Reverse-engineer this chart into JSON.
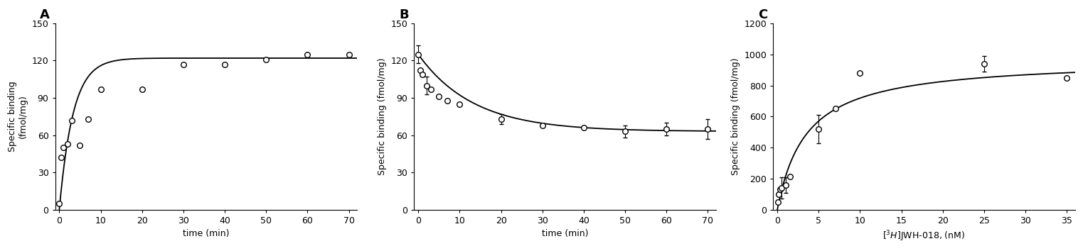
{
  "panel_A": {
    "label": "A",
    "x_data": [
      0,
      0.5,
      1,
      2,
      3,
      5,
      7,
      10,
      20,
      30,
      40,
      50,
      60,
      70
    ],
    "y_data": [
      5,
      42,
      50,
      53,
      72,
      52,
      73,
      97,
      97,
      117,
      117,
      121,
      125,
      125
    ],
    "xlabel": "time (min)",
    "ylabel": "Specific binding\n(fmol/mg)",
    "xlim": [
      -1,
      72
    ],
    "ylim": [
      0,
      150
    ],
    "xticks": [
      0,
      10,
      20,
      30,
      40,
      50,
      60,
      70
    ],
    "yticks": [
      0,
      30,
      60,
      90,
      120,
      150
    ],
    "Bmax": 122,
    "kobs": 0.3
  },
  "panel_B": {
    "label": "B",
    "x_data": [
      0,
      0.5,
      1,
      2,
      3,
      5,
      7,
      10,
      20,
      30,
      40,
      50,
      60,
      70
    ],
    "y_data": [
      125,
      112,
      109,
      100,
      97,
      91,
      88,
      85,
      73,
      68,
      66,
      63,
      65,
      65
    ],
    "y_err": [
      7,
      0,
      0,
      7,
      0,
      0,
      0,
      0,
      4,
      0,
      0,
      5,
      5,
      8
    ],
    "xlabel": "time (min)",
    "ylabel": "Specific binding (fmol/mg)",
    "xlim": [
      -1,
      72
    ],
    "ylim": [
      0,
      150
    ],
    "xticks": [
      0,
      10,
      20,
      30,
      40,
      50,
      60,
      70
    ],
    "yticks": [
      0,
      30,
      60,
      90,
      120,
      150
    ],
    "Bmax": 125,
    "plateau": 63,
    "koff": 0.075
  },
  "panel_C": {
    "label": "C",
    "x_data": [
      0.1,
      0.2,
      0.3,
      0.5,
      1.0,
      1.5,
      5.0,
      7.0,
      10.0,
      25.0,
      35.0
    ],
    "y_data": [
      50,
      100,
      130,
      140,
      160,
      215,
      520,
      650,
      880,
      940,
      850
    ],
    "y_err": [
      0,
      0,
      0,
      70,
      50,
      0,
      90,
      0,
      0,
      50,
      0
    ],
    "xlabel": "$[^{3}H]$JWH-018, (nM)",
    "ylabel": "Specific binding (fmol/mg)",
    "xlim": [
      -0.5,
      36
    ],
    "ylim": [
      0,
      1200
    ],
    "xticks": [
      0,
      5,
      10,
      15,
      20,
      25,
      30,
      35
    ],
    "yticks": [
      0,
      200,
      400,
      600,
      800,
      1000,
      1200
    ],
    "Bmax": 970,
    "Kd": 3.5
  },
  "marker_color": "#000000",
  "marker_face": "white",
  "marker_size": 5.5,
  "line_color": "#000000",
  "line_width": 1.3,
  "font_size": 9,
  "label_font_size": 9,
  "background_color": "#ffffff"
}
